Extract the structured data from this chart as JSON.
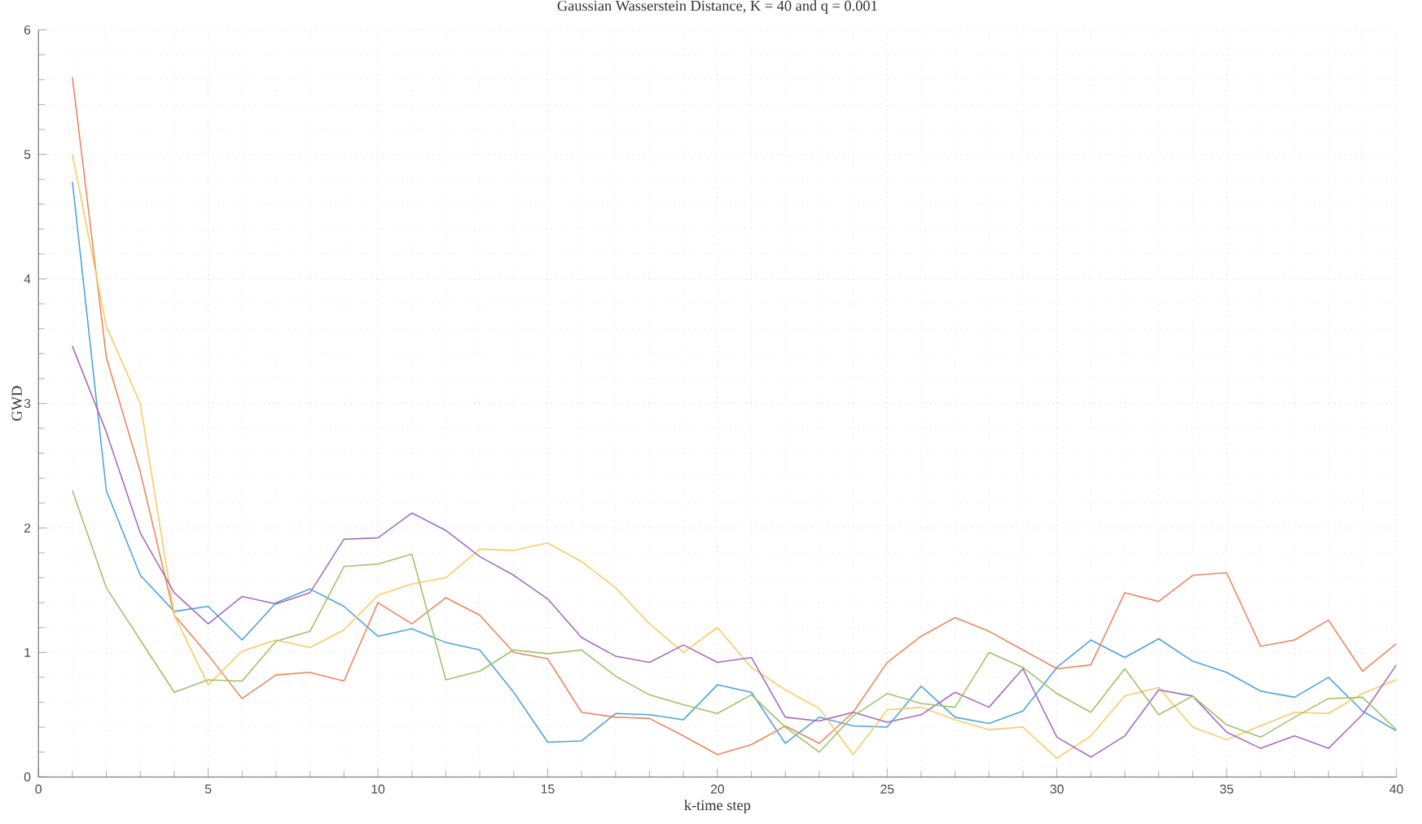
{
  "chart_data": {
    "type": "line",
    "title": "Gaussian Wasserstein Distance, K = 40 and q = 0.001",
    "xlabel": "k-time step",
    "ylabel": "GWD",
    "x": [
      1,
      2,
      3,
      4,
      5,
      6,
      7,
      8,
      9,
      10,
      11,
      12,
      13,
      14,
      15,
      16,
      17,
      18,
      19,
      20,
      21,
      22,
      23,
      24,
      25,
      26,
      27,
      28,
      29,
      30,
      31,
      32,
      33,
      34,
      35,
      36,
      37,
      38,
      39,
      40
    ],
    "series": [
      {
        "color": "#4fa3dc",
        "values": [
          4.78,
          2.3,
          1.62,
          1.33,
          1.37,
          1.1,
          1.4,
          1.51,
          1.37,
          1.13,
          1.19,
          1.08,
          1.02,
          0.68,
          0.28,
          0.29,
          0.51,
          0.5,
          0.46,
          0.74,
          0.68,
          0.27,
          0.48,
          0.41,
          0.4,
          0.73,
          0.48,
          0.43,
          0.53,
          0.88,
          1.1,
          0.96,
          1.11,
          0.93,
          0.84,
          0.69,
          0.64,
          0.8,
          0.53,
          0.37
        ]
      },
      {
        "color": "#ec8660",
        "values": [
          5.62,
          3.37,
          2.45,
          1.3,
          0.98,
          0.63,
          0.82,
          0.84,
          0.77,
          1.4,
          1.23,
          1.44,
          1.3,
          1.0,
          0.95,
          0.52,
          0.48,
          0.47,
          0.33,
          0.18,
          0.26,
          0.41,
          0.27,
          0.52,
          0.92,
          1.13,
          1.28,
          1.17,
          1.02,
          0.87,
          0.9,
          1.48,
          1.41,
          1.62,
          1.64,
          1.05,
          1.1,
          1.26,
          0.85,
          1.07
        ]
      },
      {
        "color": "#f7cb62",
        "values": [
          5.0,
          3.62,
          3.0,
          1.3,
          0.74,
          1.01,
          1.1,
          1.04,
          1.18,
          1.46,
          1.55,
          1.6,
          1.83,
          1.82,
          1.88,
          1.73,
          1.52,
          1.23,
          1.0,
          1.2,
          0.88,
          0.7,
          0.55,
          0.18,
          0.54,
          0.56,
          0.46,
          0.38,
          0.4,
          0.15,
          0.33,
          0.65,
          0.72,
          0.4,
          0.3,
          0.41,
          0.52,
          0.51,
          0.67,
          0.78
        ]
      },
      {
        "color": "#a56cbd",
        "values": [
          3.46,
          2.77,
          1.96,
          1.48,
          1.23,
          1.45,
          1.39,
          1.48,
          1.91,
          1.92,
          2.12,
          1.98,
          1.77,
          1.62,
          1.43,
          1.12,
          0.97,
          0.92,
          1.06,
          0.92,
          0.96,
          0.48,
          0.45,
          0.52,
          0.44,
          0.5,
          0.68,
          0.56,
          0.87,
          0.32,
          0.16,
          0.33,
          0.7,
          0.65,
          0.36,
          0.23,
          0.33,
          0.23,
          0.5,
          0.9
        ]
      },
      {
        "color": "#9cc566",
        "values": [
          2.3,
          1.52,
          1.1,
          0.68,
          0.78,
          0.77,
          1.09,
          1.17,
          1.69,
          1.71,
          1.79,
          0.78,
          0.85,
          1.02,
          0.99,
          1.02,
          0.81,
          0.66,
          0.58,
          0.51,
          0.66,
          0.4,
          0.2,
          0.49,
          0.67,
          0.59,
          0.56,
          1.0,
          0.88,
          0.67,
          0.52,
          0.87,
          0.5,
          0.65,
          0.42,
          0.32,
          0.48,
          0.63,
          0.64,
          0.38
        ]
      }
    ],
    "xlim": [
      0,
      40
    ],
    "ylim": [
      0,
      6
    ],
    "xticks": [
      0,
      5,
      10,
      15,
      20,
      25,
      30,
      35,
      40
    ],
    "yticks": [
      0,
      1,
      2,
      3,
      4,
      5,
      6
    ],
    "grid": true
  }
}
